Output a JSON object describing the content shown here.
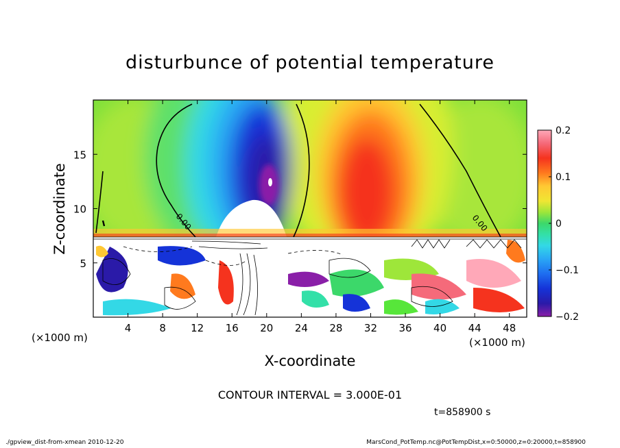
{
  "chart_data": {
    "type": "heatmap",
    "title": "disturbunce of potential temperature",
    "xlabel": "X-coordinate",
    "ylabel": "Z-coordinate",
    "x_unit": "(×1000 m)",
    "x_unit_right": "(×1000 m)",
    "xlim": [
      0,
      50
    ],
    "ylim": [
      0,
      20
    ],
    "x_ticks": [
      4,
      8,
      12,
      16,
      20,
      24,
      28,
      32,
      36,
      40,
      44,
      48
    ],
    "y_ticks": [
      5,
      10,
      15
    ],
    "colorbar": {
      "range": [
        -0.2,
        0.2
      ],
      "tick_labels": [
        "0.2",
        "0.1",
        "0",
        "−0.1",
        "−0.2"
      ],
      "tick_values": [
        0.2,
        0.1,
        0,
        -0.1,
        -0.2
      ],
      "colors": [
        "#8a1fa8",
        "#2a1aa8",
        "#1533d8",
        "#1e6ef0",
        "#2aa8f5",
        "#33d8e6",
        "#33e0a8",
        "#3cd86a",
        "#57e63a",
        "#9ee63a",
        "#d8ee33",
        "#f0e633",
        "#ffc833",
        "#ffa51e",
        "#ff7a1e",
        "#ff4a1e",
        "#f5331e",
        "#f56a7a",
        "#ffa8b8"
      ]
    },
    "contour_label": "0.00",
    "contour_interval_text": "CONTOUR INTERVAL = 3.000E-01",
    "time_text": "t=858900 s"
  },
  "footer": {
    "left": "./gpview_dist-from-xmean  2010-12-20",
    "right": "MarsCond_PotTemp.nc@PotTempDist,x=0:50000,z=0:20000,t=858900"
  }
}
